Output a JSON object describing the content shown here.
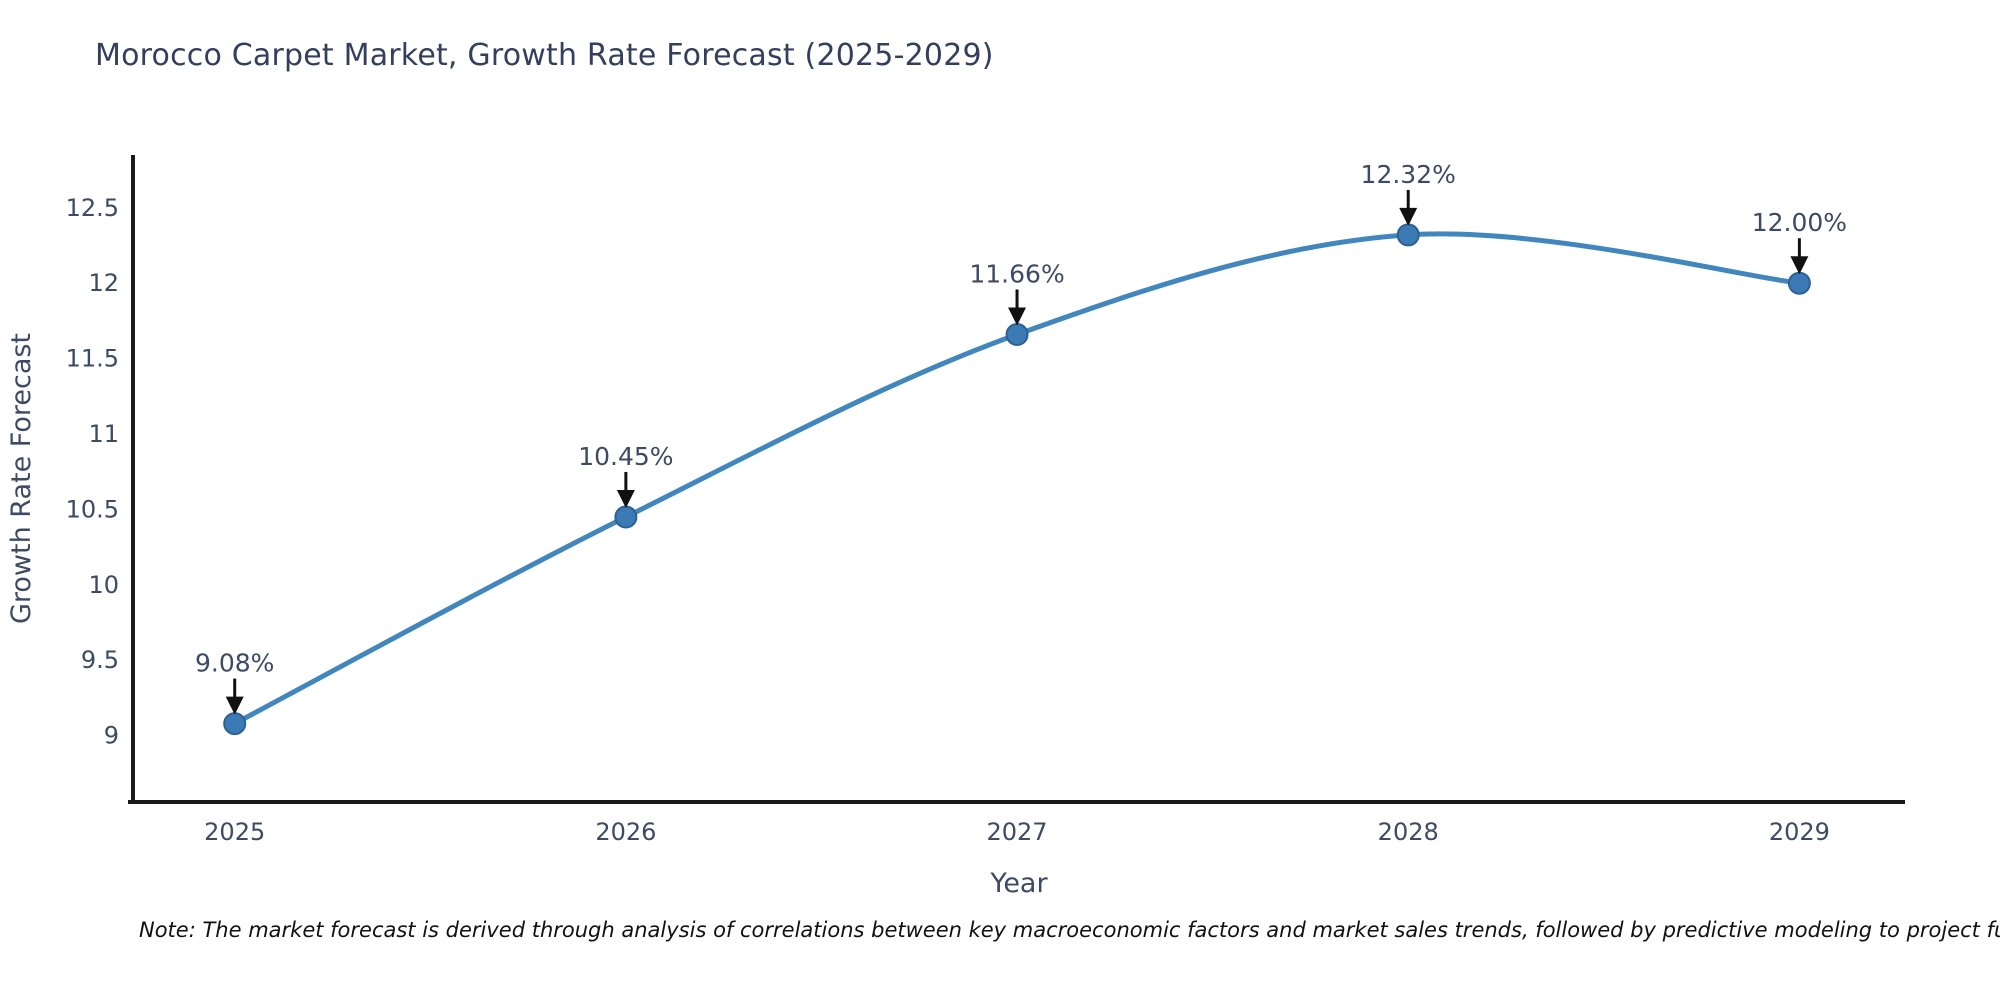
{
  "header": {
    "title": "Morocco Carpet Market, Growth Rate Forecast (2025-2029)"
  },
  "footnote": {
    "text": "Note: The market forecast is derived through analysis of correlations between key macroeconomic factors and market sales trends, followed by predictive modeling to project future sal"
  },
  "chart_data": {
    "type": "line",
    "title": "Morocco Carpet Market, Growth Rate Forecast (2025-2029)",
    "xlabel": "Year",
    "ylabel": "Growth Rate Forecast",
    "categories": [
      2025,
      2026,
      2027,
      2028,
      2029
    ],
    "x_tick_labels": [
      "2025",
      "2026",
      "2027",
      "2028",
      "2029"
    ],
    "series": [
      {
        "name": "Growth Rate Forecast",
        "values": [
          9.08,
          10.45,
          11.66,
          12.32,
          12.0
        ],
        "point_labels": [
          "9.08%",
          "10.45%",
          "11.66%",
          "12.32%",
          "12.00%"
        ]
      }
    ],
    "y_ticks": [
      9,
      9.5,
      10,
      10.5,
      11,
      11.5,
      12,
      12.5
    ],
    "y_tick_labels": [
      "9",
      "9.5",
      "10",
      "10.5",
      "11",
      "11.5",
      "12",
      "12.5"
    ],
    "xlim": [
      2024.74,
      2029.27
    ],
    "ylim": [
      8.56,
      12.85
    ],
    "grid": false,
    "legend": "none",
    "line_smoothing": "spline",
    "colors": {
      "line": "#4186bd",
      "marker_fill": "#3c7ab6",
      "marker_edge": "#2d6094",
      "axis_spine": "#1a1a1a",
      "tick_text": "#3d4a63",
      "title_text": "#333f5c",
      "annotation_text": "#39455e",
      "arrow": "#111111",
      "background": "#ffffff"
    }
  }
}
